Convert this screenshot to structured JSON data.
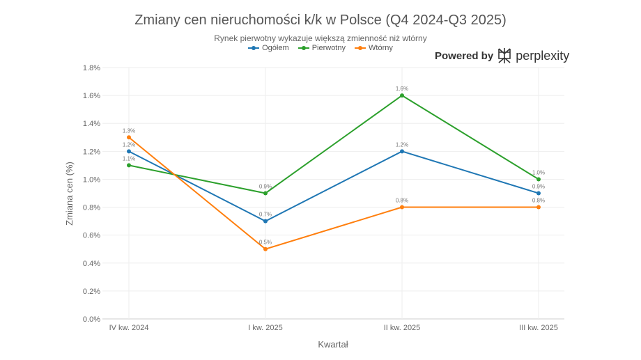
{
  "chart_data": {
    "type": "line",
    "title": "Zmiany cen nieruchomości k/k w Polsce (Q4 2024-Q3 2025)",
    "subtitle": "Rynek pierwotny wykazuje większą zmienność niż wtórny",
    "xlabel": "Kwartał",
    "ylabel": "Zmiana cen (%)",
    "categories": [
      "IV kw. 2024",
      "I kw. 2025",
      "II kw. 2025",
      "III kw. 2025"
    ],
    "ylim": [
      0,
      1.8
    ],
    "yticks": [
      "0.0%",
      "0.2%",
      "0.4%",
      "0.6%",
      "0.8%",
      "1.0%",
      "1.2%",
      "1.4%",
      "1.6%",
      "1.8%"
    ],
    "grid": true,
    "legend_position": "top",
    "series": [
      {
        "name": "Ogółem",
        "color": "#1f77b4",
        "values": [
          1.2,
          0.7,
          1.2,
          0.9
        ],
        "labels": [
          "1.2%",
          "0.7%",
          "1.2%",
          "0.9%"
        ]
      },
      {
        "name": "Pierwotny",
        "color": "#2ca02c",
        "values": [
          1.1,
          0.9,
          1.6,
          1.0
        ],
        "labels": [
          "1.1%",
          "0.9%",
          "1.6%",
          "1.0%"
        ]
      },
      {
        "name": "Wtórny",
        "color": "#ff7f0e",
        "values": [
          1.3,
          0.5,
          0.8,
          0.8
        ],
        "labels": [
          "1.3%",
          "0.5%",
          "0.8%",
          "0.8%"
        ]
      }
    ]
  },
  "branding": {
    "powered_by": "Powered by",
    "name": "perplexity"
  }
}
